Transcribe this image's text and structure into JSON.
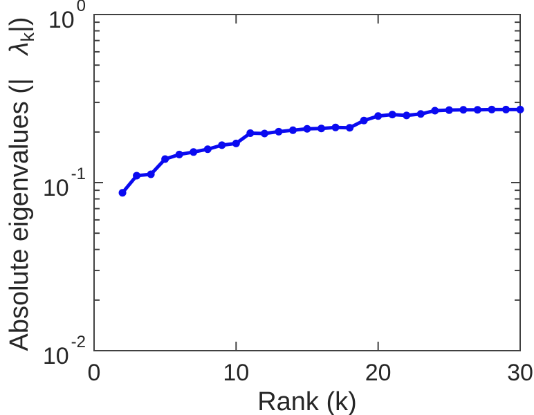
{
  "figure": {
    "background": "#ffffff"
  },
  "chart_data": {
    "type": "line",
    "title": "",
    "xlabel": "Rank (k)",
    "ylabel": "Absolute eigenvalues (| λ_k |)",
    "ylabel_parts": {
      "prefix": "Absolute eigenvalues (|",
      "lambda": "λ",
      "subscript": "k",
      "suffix": "|)"
    },
    "series_name": "absolute-eigenvalues",
    "x": [
      2,
      3,
      4,
      5,
      6,
      7,
      8,
      9,
      10,
      11,
      12,
      13,
      14,
      15,
      16,
      17,
      18,
      19,
      20,
      21,
      22,
      23,
      24,
      25,
      26,
      27,
      28,
      29,
      30
    ],
    "values": [
      0.087,
      0.11,
      0.112,
      0.138,
      0.147,
      0.152,
      0.158,
      0.167,
      0.171,
      0.197,
      0.196,
      0.201,
      0.205,
      0.209,
      0.21,
      0.213,
      0.212,
      0.234,
      0.249,
      0.254,
      0.251,
      0.256,
      0.268,
      0.27,
      0.271,
      0.271,
      0.272,
      0.272,
      0.272
    ],
    "xlim": [
      0,
      30
    ],
    "ylim": [
      0.01,
      1
    ],
    "yscale": "log",
    "grid": false,
    "legend": null,
    "x_ticks": [
      {
        "value": 0,
        "label": "0"
      },
      {
        "value": 10,
        "label": "10"
      },
      {
        "value": 20,
        "label": "20"
      },
      {
        "value": 30,
        "label": "30"
      }
    ],
    "y_ticks": [
      {
        "value": 1,
        "base": "10",
        "exp": "0"
      },
      {
        "value": 0.1,
        "base": "10",
        "exp": "-1"
      },
      {
        "value": 0.01,
        "base": "10",
        "exp": "-2"
      }
    ],
    "y_minor_ticks": [
      0.02,
      0.03,
      0.04,
      0.05,
      0.06,
      0.07,
      0.08,
      0.09,
      0.2,
      0.3,
      0.4,
      0.5,
      0.6,
      0.7,
      0.8,
      0.9
    ],
    "line_color": "#0a0af0",
    "marker": "filled-circle",
    "axis_color": "#404040",
    "text_color": "#262626"
  }
}
